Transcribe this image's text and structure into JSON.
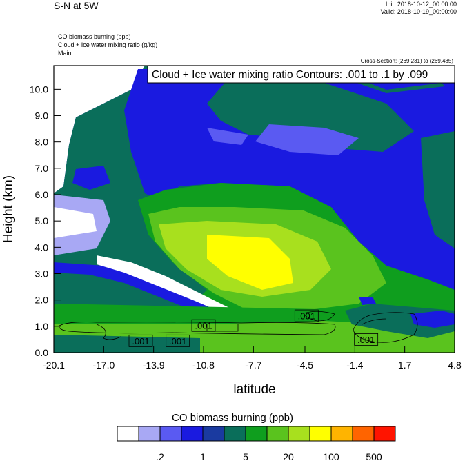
{
  "header": {
    "title": "S-N at 5W",
    "init": "Init: 2018-10-12_00:00:00",
    "valid": "Valid: 2018-10-19_00:00:00",
    "subtitles": [
      "CO biomass burning   (ppb)",
      "Cloud + Ice water mixing ratio   (g/kg)",
      "Main"
    ],
    "cross_section": "Cross-Section: (269,231) to (269,485)"
  },
  "chart_data": {
    "type": "heatmap",
    "title": "S-N at 5W",
    "contour_label": "Cloud + Ice water mixing ratio Contours: .001 to .1 by .099",
    "xlabel": "latitude",
    "ylabel": "Height (km)",
    "xlim": [
      -20.1,
      4.8
    ],
    "ylim": [
      0.0,
      10.9
    ],
    "xticks": [
      "-20.1",
      "-17.0",
      "-13.9",
      "-10.8",
      "-7.7",
      "-4.5",
      "-1.4",
      "1.7",
      "4.8"
    ],
    "yticks": [
      "0.0",
      "1.0",
      "2.0",
      "3.0",
      "4.0",
      "5.0",
      "6.0",
      "7.0",
      "8.0",
      "9.0",
      "10.0"
    ],
    "contour_labels": [
      {
        "text": ".001",
        "x": -14.7,
        "y": 0.45
      },
      {
        "text": ".001",
        "x": -12.4,
        "y": 0.45
      },
      {
        "text": ".001",
        "x": -10.8,
        "y": 1.03
      },
      {
        "text": ".001",
        "x": -4.4,
        "y": 1.4
      },
      {
        "text": ".001",
        "x": -0.7,
        "y": 0.5
      }
    ],
    "colorbar": {
      "title": "CO biomass burning  (ppb)",
      "colors": [
        "#ffffff",
        "#a8a8f4",
        "#5a5af2",
        "#1a1ae0",
        "#1a3aa0",
        "#0a6e5a",
        "#0f9e1e",
        "#5ac31e",
        "#a8e01e",
        "#ffff00",
        "#ffb400",
        "#ff6400",
        "#ff1400"
      ],
      "tick_labels": [
        ".2",
        "1",
        "5",
        "20",
        "100",
        "500"
      ]
    }
  }
}
